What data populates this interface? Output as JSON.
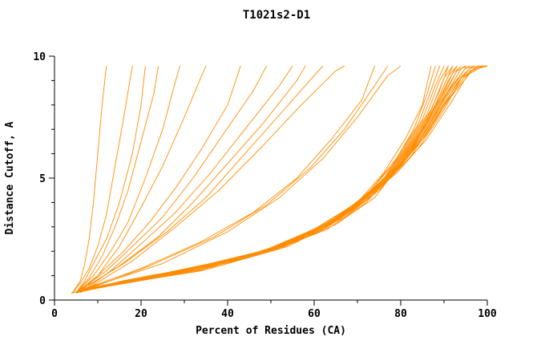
{
  "chart_data": {
    "type": "line",
    "title": "T1021s2-D1",
    "xlabel": "Percent of Residues (CA)",
    "ylabel": "Distance Cutoff, A",
    "xlim": [
      0,
      100
    ],
    "ylim": [
      0,
      10
    ],
    "x_major_ticks": [
      0,
      20,
      40,
      60,
      80,
      100
    ],
    "x_minor_step": 10,
    "y_major_ticks": [
      0,
      5,
      10
    ],
    "y_minor_step": 1,
    "grid": false,
    "legend": "none",
    "line_color": "#ff8c00",
    "axis_color": "#000000",
    "series": [
      [
        [
          4,
          0.25
        ],
        [
          6,
          0.8
        ],
        [
          7,
          1.5
        ],
        [
          8,
          2.5
        ],
        [
          9,
          4.0
        ],
        [
          10,
          6.0
        ],
        [
          11,
          8.0
        ],
        [
          12,
          9.6
        ]
      ],
      [
        [
          4,
          0.25
        ],
        [
          6,
          0.7
        ],
        [
          8,
          1.3
        ],
        [
          10,
          2.2
        ],
        [
          12,
          3.5
        ],
        [
          14,
          5.5
        ],
        [
          16,
          7.5
        ],
        [
          18,
          9.6
        ]
      ],
      [
        [
          5,
          0.3
        ],
        [
          7,
          0.8
        ],
        [
          9,
          1.5
        ],
        [
          12,
          2.5
        ],
        [
          15,
          4.0
        ],
        [
          18,
          6.0
        ],
        [
          20,
          8.0
        ],
        [
          21,
          9.6
        ]
      ],
      [
        [
          5,
          0.3
        ],
        [
          8,
          0.9
        ],
        [
          11,
          1.8
        ],
        [
          14,
          3.0
        ],
        [
          17,
          4.5
        ],
        [
          20,
          6.5
        ],
        [
          23,
          8.5
        ],
        [
          24,
          9.6
        ]
      ],
      [
        [
          5,
          0.3
        ],
        [
          9,
          1.0
        ],
        [
          13,
          2.0
        ],
        [
          17,
          3.2
        ],
        [
          21,
          5.0
        ],
        [
          25,
          7.0
        ],
        [
          28,
          9.0
        ],
        [
          29,
          9.6
        ]
      ],
      [
        [
          6,
          0.3
        ],
        [
          10,
          1.0
        ],
        [
          15,
          2.2
        ],
        [
          20,
          3.8
        ],
        [
          25,
          5.5
        ],
        [
          30,
          7.5
        ],
        [
          34,
          9.2
        ],
        [
          35,
          9.6
        ]
      ],
      [
        [
          5,
          0.3
        ],
        [
          10,
          1.0
        ],
        [
          16,
          2.0
        ],
        [
          22,
          3.2
        ],
        [
          28,
          4.6
        ],
        [
          34,
          6.2
        ],
        [
          40,
          8.0
        ],
        [
          43,
          9.6
        ]
      ],
      [
        [
          5,
          0.3
        ],
        [
          12,
          1.2
        ],
        [
          18,
          2.2
        ],
        [
          25,
          3.4
        ],
        [
          32,
          5.0
        ],
        [
          39,
          6.8
        ],
        [
          46,
          8.6
        ],
        [
          49,
          9.6
        ]
      ],
      [
        [
          6,
          0.3
        ],
        [
          13,
          1.2
        ],
        [
          20,
          2.3
        ],
        [
          28,
          3.6
        ],
        [
          36,
          5.2
        ],
        [
          44,
          7.0
        ],
        [
          52,
          8.8
        ],
        [
          55,
          9.6
        ]
      ],
      [
        [
          6,
          0.4
        ],
        [
          15,
          1.4
        ],
        [
          24,
          2.6
        ],
        [
          32,
          4.0
        ],
        [
          40,
          5.6
        ],
        [
          48,
          7.2
        ],
        [
          56,
          9.0
        ],
        [
          58,
          9.6
        ]
      ],
      [
        [
          6,
          0.4
        ],
        [
          16,
          1.5
        ],
        [
          26,
          2.8
        ],
        [
          35,
          4.2
        ],
        [
          44,
          6.0
        ],
        [
          52,
          7.6
        ],
        [
          60,
          9.2
        ],
        [
          62,
          9.6
        ]
      ],
      [
        [
          7,
          0.4
        ],
        [
          18,
          1.6
        ],
        [
          28,
          3.0
        ],
        [
          38,
          4.5
        ],
        [
          48,
          6.3
        ],
        [
          57,
          8.0
        ],
        [
          65,
          9.4
        ],
        [
          67,
          9.6
        ]
      ],
      [
        [
          6,
          0.4
        ],
        [
          20,
          1.3
        ],
        [
          34,
          2.4
        ],
        [
          46,
          3.6
        ],
        [
          56,
          5.0
        ],
        [
          64,
          6.6
        ],
        [
          71,
          8.2
        ],
        [
          74,
          9.6
        ]
      ],
      [
        [
          7,
          0.4
        ],
        [
          22,
          1.4
        ],
        [
          37,
          2.6
        ],
        [
          49,
          3.9
        ],
        [
          59,
          5.4
        ],
        [
          67,
          7.0
        ],
        [
          74,
          8.8
        ],
        [
          77,
          9.6
        ]
      ],
      [
        [
          7,
          0.45
        ],
        [
          25,
          1.5
        ],
        [
          40,
          2.8
        ],
        [
          52,
          4.2
        ],
        [
          62,
          5.8
        ],
        [
          70,
          7.5
        ],
        [
          77,
          9.2
        ],
        [
          80,
          9.6
        ]
      ],
      [
        [
          4,
          0.3
        ],
        [
          12,
          0.6
        ],
        [
          25,
          1.0
        ],
        [
          40,
          1.6
        ],
        [
          52,
          2.2
        ],
        [
          62,
          3.0
        ],
        [
          70,
          4.0
        ],
        [
          76,
          5.2
        ],
        [
          81,
          6.6
        ],
        [
          85,
          8.0
        ],
        [
          87,
          9.6
        ]
      ],
      [
        [
          4,
          0.3
        ],
        [
          14,
          0.7
        ],
        [
          28,
          1.1
        ],
        [
          43,
          1.7
        ],
        [
          55,
          2.4
        ],
        [
          65,
          3.3
        ],
        [
          72,
          4.3
        ],
        [
          78,
          5.5
        ],
        [
          83,
          7.0
        ],
        [
          86,
          8.4
        ],
        [
          88,
          9.6
        ]
      ],
      [
        [
          5,
          0.3
        ],
        [
          15,
          0.7
        ],
        [
          30,
          1.2
        ],
        [
          45,
          1.8
        ],
        [
          57,
          2.5
        ],
        [
          66,
          3.4
        ],
        [
          73,
          4.5
        ],
        [
          79,
          5.8
        ],
        [
          84,
          7.2
        ],
        [
          87,
          8.6
        ],
        [
          89,
          9.6
        ]
      ],
      [
        [
          5,
          0.3
        ],
        [
          16,
          0.8
        ],
        [
          32,
          1.3
        ],
        [
          47,
          1.9
        ],
        [
          58,
          2.7
        ],
        [
          68,
          3.6
        ],
        [
          75,
          4.7
        ],
        [
          80,
          6.0
        ],
        [
          85,
          7.4
        ],
        [
          88,
          8.8
        ],
        [
          90,
          9.6
        ]
      ],
      [
        [
          5,
          0.35
        ],
        [
          18,
          0.8
        ],
        [
          34,
          1.4
        ],
        [
          48,
          2.0
        ],
        [
          60,
          2.8
        ],
        [
          69,
          3.8
        ],
        [
          76,
          4.9
        ],
        [
          81,
          6.2
        ],
        [
          86,
          7.6
        ],
        [
          89,
          9.0
        ],
        [
          91,
          9.6
        ]
      ],
      [
        [
          5,
          0.35
        ],
        [
          20,
          0.9
        ],
        [
          36,
          1.5
        ],
        [
          50,
          2.1
        ],
        [
          61,
          3.0
        ],
        [
          70,
          4.0
        ],
        [
          77,
          5.1
        ],
        [
          82,
          6.4
        ],
        [
          87,
          7.8
        ],
        [
          90,
          9.1
        ],
        [
          92,
          9.6
        ]
      ],
      [
        [
          6,
          0.35
        ],
        [
          22,
          0.9
        ],
        [
          38,
          1.5
        ],
        [
          52,
          2.2
        ],
        [
          62,
          3.1
        ],
        [
          71,
          4.1
        ],
        [
          78,
          5.3
        ],
        [
          83,
          6.6
        ],
        [
          88,
          8.0
        ],
        [
          91,
          9.2
        ],
        [
          93,
          9.6
        ]
      ],
      [
        [
          6,
          0.4
        ],
        [
          24,
          1.0
        ],
        [
          40,
          1.6
        ],
        [
          53,
          2.3
        ],
        [
          64,
          3.2
        ],
        [
          72,
          4.3
        ],
        [
          79,
          5.5
        ],
        [
          84,
          6.8
        ],
        [
          89,
          8.2
        ],
        [
          92,
          9.3
        ],
        [
          94,
          9.6
        ]
      ],
      [
        [
          6,
          0.4
        ],
        [
          26,
          1.0
        ],
        [
          42,
          1.7
        ],
        [
          55,
          2.4
        ],
        [
          65,
          3.3
        ],
        [
          73,
          4.4
        ],
        [
          80,
          5.6
        ],
        [
          85,
          7.0
        ],
        [
          90,
          8.4
        ],
        [
          93,
          9.4
        ],
        [
          95,
          9.6
        ]
      ],
      [
        [
          6,
          0.4
        ],
        [
          28,
          1.1
        ],
        [
          44,
          1.8
        ],
        [
          57,
          2.5
        ],
        [
          66,
          3.5
        ],
        [
          74,
          4.6
        ],
        [
          81,
          5.8
        ],
        [
          86,
          7.2
        ],
        [
          91,
          8.6
        ],
        [
          94,
          9.5
        ],
        [
          96,
          9.6
        ]
      ],
      [
        [
          7,
          0.4
        ],
        [
          30,
          1.1
        ],
        [
          46,
          1.8
        ],
        [
          58,
          2.6
        ],
        [
          68,
          3.6
        ],
        [
          76,
          4.8
        ],
        [
          82,
          6.0
        ],
        [
          87,
          7.4
        ],
        [
          92,
          8.8
        ],
        [
          95,
          9.5
        ],
        [
          97,
          9.6
        ]
      ],
      [
        [
          7,
          0.45
        ],
        [
          32,
          1.2
        ],
        [
          48,
          1.9
        ],
        [
          60,
          2.7
        ],
        [
          69,
          3.8
        ],
        [
          77,
          5.0
        ],
        [
          83,
          6.2
        ],
        [
          88,
          7.6
        ],
        [
          93,
          9.0
        ],
        [
          96,
          9.5
        ],
        [
          98,
          9.6
        ]
      ],
      [
        [
          7,
          0.45
        ],
        [
          34,
          1.2
        ],
        [
          50,
          2.0
        ],
        [
          61,
          2.8
        ],
        [
          70,
          3.9
        ],
        [
          78,
          5.1
        ],
        [
          84,
          6.4
        ],
        [
          89,
          7.8
        ],
        [
          94,
          9.1
        ],
        [
          97,
          9.5
        ],
        [
          99,
          9.6
        ]
      ],
      [
        [
          8,
          0.45
        ],
        [
          36,
          1.3
        ],
        [
          52,
          2.1
        ],
        [
          63,
          3.0
        ],
        [
          72,
          4.1
        ],
        [
          79,
          5.3
        ],
        [
          85,
          6.6
        ],
        [
          90,
          8.0
        ],
        [
          95,
          9.2
        ],
        [
          98,
          9.5
        ],
        [
          100,
          9.6
        ]
      ],
      [
        [
          8,
          0.5
        ],
        [
          38,
          1.4
        ],
        [
          54,
          2.2
        ],
        [
          64,
          3.1
        ],
        [
          73,
          4.2
        ],
        [
          80,
          5.5
        ],
        [
          86,
          6.8
        ],
        [
          91,
          8.2
        ],
        [
          96,
          9.3
        ],
        [
          99,
          9.6
        ],
        [
          100,
          9.6
        ]
      ],
      [
        [
          4,
          0.3
        ],
        [
          10,
          0.5
        ],
        [
          20,
          0.9
        ],
        [
          35,
          1.4
        ],
        [
          50,
          2.0
        ],
        [
          63,
          2.9
        ],
        [
          72,
          4.0
        ],
        [
          79,
          5.4
        ],
        [
          85,
          7.0
        ],
        [
          89,
          8.6
        ],
        [
          91,
          9.6
        ]
      ],
      [
        [
          5,
          0.3
        ],
        [
          11,
          0.6
        ],
        [
          22,
          1.0
        ],
        [
          38,
          1.5
        ],
        [
          53,
          2.2
        ],
        [
          65,
          3.1
        ],
        [
          74,
          4.2
        ],
        [
          80,
          5.6
        ],
        [
          86,
          7.2
        ],
        [
          90,
          8.8
        ],
        [
          92,
          9.6
        ]
      ],
      [
        [
          5,
          0.3
        ],
        [
          13,
          0.6
        ],
        [
          26,
          1.1
        ],
        [
          42,
          1.7
        ],
        [
          56,
          2.4
        ],
        [
          67,
          3.4
        ],
        [
          75,
          4.5
        ],
        [
          82,
          6.0
        ],
        [
          87,
          7.6
        ],
        [
          91,
          9.0
        ],
        [
          93,
          9.6
        ]
      ],
      [
        [
          6,
          0.35
        ],
        [
          17,
          0.8
        ],
        [
          33,
          1.3
        ],
        [
          48,
          2.0
        ],
        [
          60,
          2.9
        ],
        [
          70,
          4.0
        ],
        [
          78,
          5.2
        ],
        [
          84,
          6.8
        ],
        [
          89,
          8.2
        ],
        [
          93,
          9.4
        ],
        [
          95,
          9.6
        ]
      ],
      [
        [
          6,
          0.35
        ],
        [
          19,
          0.85
        ],
        [
          35,
          1.4
        ],
        [
          50,
          2.1
        ],
        [
          62,
          3.0
        ],
        [
          72,
          4.2
        ],
        [
          80,
          5.5
        ],
        [
          86,
          7.0
        ],
        [
          91,
          8.6
        ],
        [
          95,
          9.5
        ],
        [
          97,
          9.6
        ]
      ],
      [
        [
          7,
          0.4
        ],
        [
          23,
          0.95
        ],
        [
          40,
          1.6
        ],
        [
          54,
          2.3
        ],
        [
          65,
          3.3
        ],
        [
          74,
          4.5
        ],
        [
          82,
          5.8
        ],
        [
          88,
          7.4
        ],
        [
          93,
          8.9
        ],
        [
          96,
          9.5
        ],
        [
          98,
          9.6
        ]
      ],
      [
        [
          7,
          0.4
        ],
        [
          27,
          1.05
        ],
        [
          44,
          1.8
        ],
        [
          58,
          2.6
        ],
        [
          68,
          3.7
        ],
        [
          77,
          4.9
        ],
        [
          84,
          6.2
        ],
        [
          90,
          7.8
        ],
        [
          94,
          9.1
        ],
        [
          98,
          9.6
        ],
        [
          99,
          9.6
        ]
      ],
      [
        [
          8,
          0.45
        ],
        [
          31,
          1.15
        ],
        [
          48,
          2.0
        ],
        [
          61,
          2.8
        ],
        [
          71,
          4.0
        ],
        [
          79,
          5.2
        ],
        [
          86,
          6.6
        ],
        [
          92,
          8.2
        ],
        [
          96,
          9.4
        ],
        [
          100,
          9.6
        ]
      ]
    ]
  }
}
